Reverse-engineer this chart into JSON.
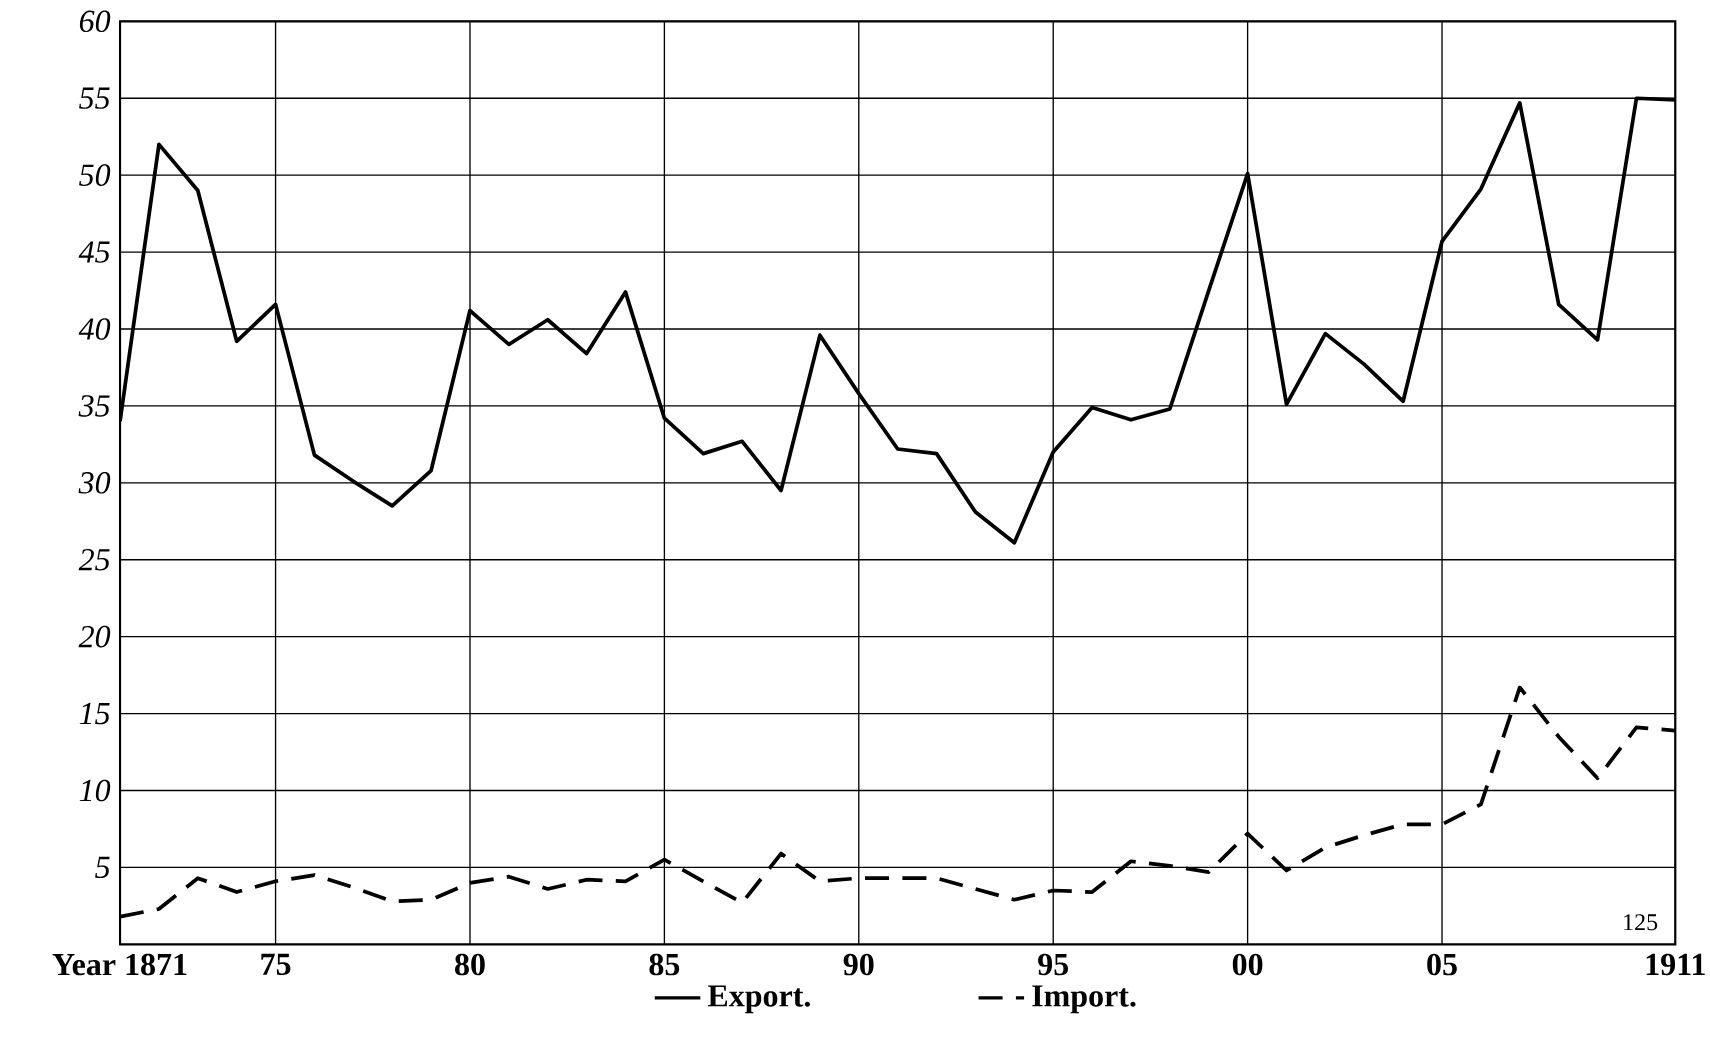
{
  "chart_data": {
    "type": "line",
    "x": [
      1871,
      1872,
      1873,
      1874,
      1875,
      1876,
      1877,
      1878,
      1879,
      1880,
      1881,
      1882,
      1883,
      1884,
      1885,
      1886,
      1887,
      1888,
      1889,
      1890,
      1891,
      1892,
      1893,
      1894,
      1895,
      1896,
      1897,
      1898,
      1899,
      1900,
      1901,
      1902,
      1903,
      1904,
      1905,
      1906,
      1907,
      1908,
      1909,
      1910,
      1911
    ],
    "series": [
      {
        "name": "Export.",
        "color": "#000000",
        "line_style": "solid",
        "values": [
          34,
          52,
          49,
          39.2,
          41.6,
          31.8,
          30.1,
          28.5,
          30.8,
          41.2,
          39,
          40.6,
          38.4,
          42.4,
          34.2,
          31.9,
          32.7,
          29.5,
          39.6,
          35.8,
          32.2,
          31.9,
          28.1,
          26.1,
          32,
          34.9,
          34.1,
          34.8,
          42.5,
          50.1,
          35.1,
          39.7,
          37.7,
          35.3,
          45.7,
          49.1,
          54.7,
          41.6,
          39.3,
          55,
          54.9
        ]
      },
      {
        "name": "Import.",
        "color": "#000000",
        "line_style": "dashed",
        "values": [
          1.8,
          2.3,
          4.3,
          3.4,
          4.1,
          4.5,
          3.7,
          2.8,
          2.9,
          4,
          4.4,
          3.6,
          4.2,
          4.1,
          5.5,
          4.1,
          2.7,
          5.9,
          4.1,
          4.3,
          4.3,
          4.3,
          3.6,
          2.9,
          3.5,
          3.4,
          5.4,
          5.1,
          4.7,
          7.2,
          4.8,
          6.3,
          7.1,
          7.8,
          7.8,
          9.1,
          16.7,
          13.5,
          10.8,
          14.1,
          13.9
        ]
      }
    ],
    "xlim": [
      1871,
      1911
    ],
    "xticks": [
      {
        "value": 1871,
        "label": "Year 1871"
      },
      {
        "value": 1875,
        "label": "75"
      },
      {
        "value": 1880,
        "label": "80"
      },
      {
        "value": 1885,
        "label": "85"
      },
      {
        "value": 1890,
        "label": "90"
      },
      {
        "value": 1895,
        "label": "95"
      },
      {
        "value": 1900,
        "label": "00"
      },
      {
        "value": 1905,
        "label": "05"
      },
      {
        "value": 1911,
        "label": "1911"
      }
    ],
    "ylim": [
      0,
      60
    ],
    "yticks": [
      5,
      10,
      15,
      20,
      25,
      30,
      35,
      40,
      45,
      50,
      55,
      60
    ],
    "grid": true,
    "legend": "bottom",
    "annotations": [
      "125"
    ]
  }
}
